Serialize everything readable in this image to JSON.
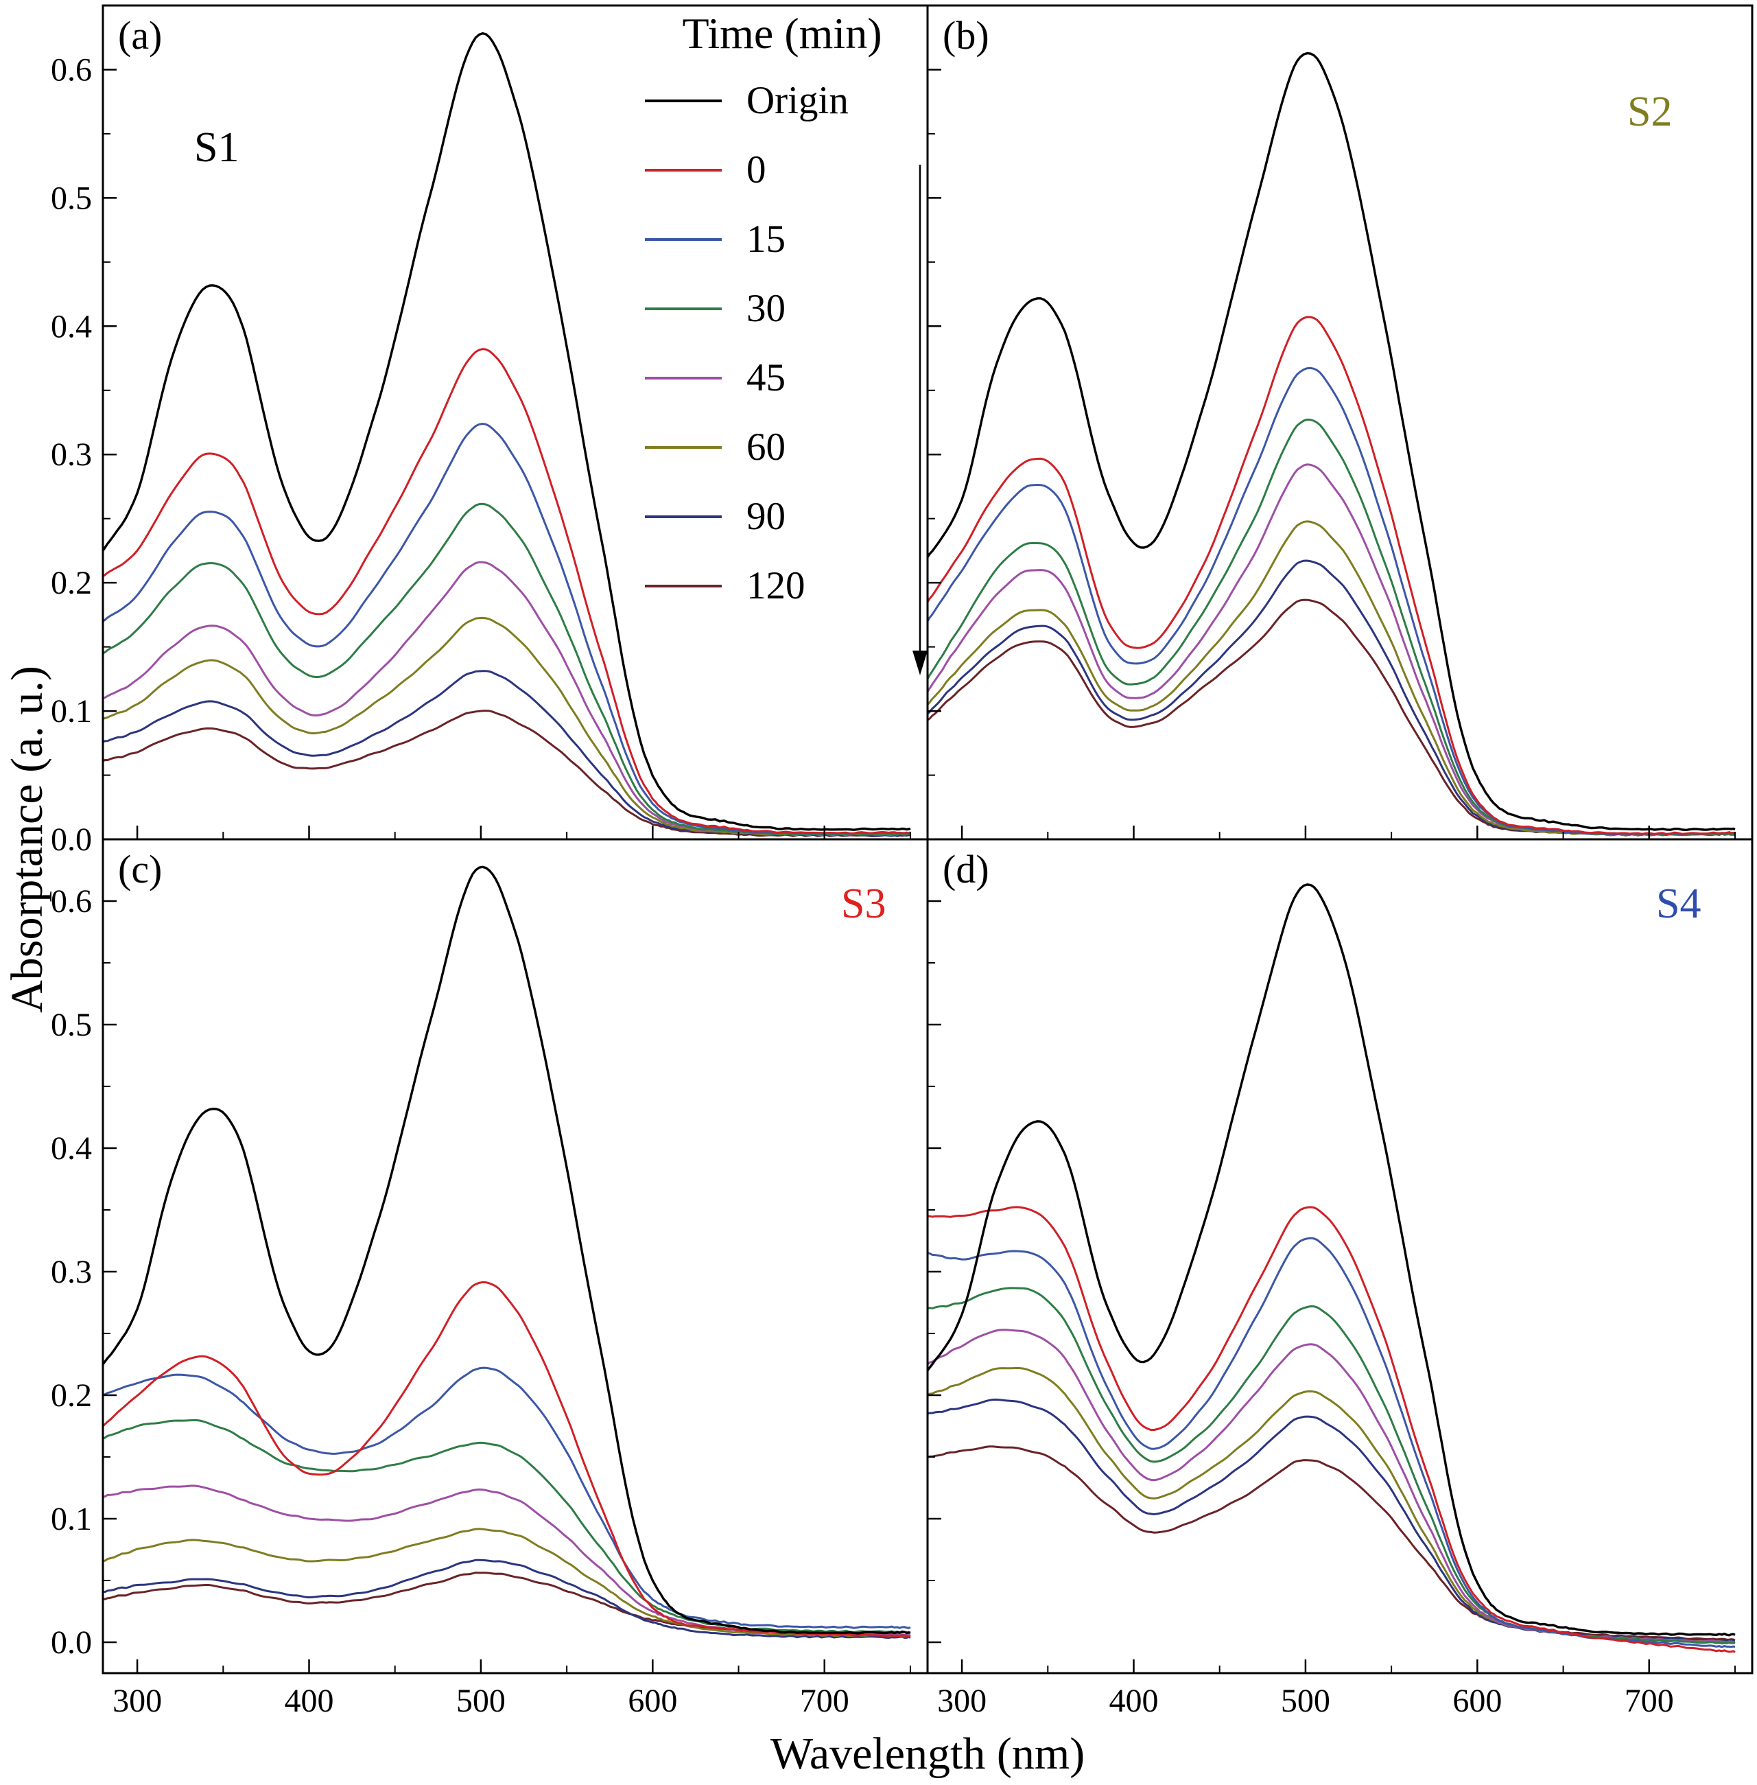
{
  "chart_data": {
    "type": "line",
    "legend_title": "Time (min)",
    "series_labels": [
      "Origin",
      "0",
      "15",
      "30",
      "45",
      "60",
      "90",
      "120"
    ],
    "series_colors": [
      "#000000",
      "#d02027",
      "#3c57a7",
      "#2e7d46",
      "#9e4fa5",
      "#7f7d20",
      "#2b3580",
      "#6a2328"
    ],
    "x_axis": {
      "label": "Wavelength (nm)",
      "range": [
        280,
        760
      ],
      "ticks": [
        300,
        400,
        500,
        600,
        700
      ],
      "minor_ticks": [
        350,
        450,
        550,
        650,
        750
      ]
    },
    "y_axis": {
      "label": "Absorptance (a. u.)",
      "range_top": [
        0,
        0.65
      ],
      "range_bottom": [
        -0.025,
        0.65
      ],
      "ticks": [
        "0.0",
        "0.1",
        "0.2",
        "0.3",
        "0.4",
        "0.5",
        "0.6"
      ],
      "minor_ticks": [
        0.05,
        0.15,
        0.25,
        0.35,
        0.45,
        0.55
      ]
    },
    "x": [
      280,
      300,
      320,
      340,
      360,
      385,
      410,
      440,
      470,
      497,
      520,
      545,
      570,
      600,
      650,
      750
    ],
    "panels": [
      {
        "tag": "(a)",
        "sample": "S1",
        "sample_color": "#000000",
        "series": [
          {
            "label": "Origin",
            "y": [
              0.225,
              0.27,
              0.375,
              0.43,
              0.405,
              0.275,
              0.235,
              0.34,
              0.5,
              0.625,
              0.575,
              0.42,
              0.235,
              0.05,
              0.012,
              0.008
            ]
          },
          {
            "label": "0",
            "y": [
              0.205,
              0.225,
              0.27,
              0.3,
              0.283,
              0.2,
              0.177,
              0.235,
              0.31,
              0.38,
              0.352,
              0.26,
              0.145,
              0.032,
              0.008,
              0.005
            ]
          },
          {
            "label": "15",
            "y": [
              0.17,
              0.19,
              0.23,
              0.255,
              0.24,
              0.17,
              0.152,
              0.2,
              0.262,
              0.322,
              0.297,
              0.22,
              0.122,
              0.028,
              0.007,
              0.005
            ]
          },
          {
            "label": "30",
            "y": [
              0.145,
              0.163,
              0.195,
              0.215,
              0.202,
              0.143,
              0.128,
              0.166,
              0.213,
              0.26,
              0.24,
              0.178,
              0.1,
              0.023,
              0.006,
              0.004
            ]
          },
          {
            "label": "45",
            "y": [
              0.11,
              0.124,
              0.15,
              0.166,
              0.156,
              0.11,
              0.098,
              0.13,
              0.175,
              0.215,
              0.198,
              0.148,
              0.083,
              0.02,
              0.006,
              0.004
            ]
          },
          {
            "label": "60",
            "y": [
              0.094,
              0.105,
              0.126,
              0.139,
              0.13,
              0.092,
              0.084,
              0.108,
              0.14,
              0.172,
              0.158,
              0.118,
              0.066,
              0.017,
              0.005,
              0.004
            ]
          },
          {
            "label": "90",
            "y": [
              0.076,
              0.084,
              0.098,
              0.107,
              0.1,
              0.072,
              0.066,
              0.083,
              0.107,
              0.131,
              0.12,
              0.09,
              0.051,
              0.014,
              0.005,
              0.003
            ]
          },
          {
            "label": "120",
            "y": [
              0.061,
              0.068,
              0.08,
              0.086,
              0.081,
              0.059,
              0.056,
              0.068,
              0.084,
              0.1,
              0.092,
              0.07,
              0.04,
              0.012,
              0.004,
              0.003
            ]
          }
        ]
      },
      {
        "tag": "(b)",
        "sample": "S2",
        "sample_color": "#7f7d20",
        "series": [
          {
            "label": "Origin",
            "y": [
              0.22,
              0.265,
              0.37,
              0.42,
              0.395,
              0.27,
              0.23,
              0.335,
              0.49,
              0.61,
              0.565,
              0.41,
              0.23,
              0.048,
              0.012,
              0.008
            ]
          },
          {
            "label": "0",
            "y": [
              0.185,
              0.225,
              0.27,
              0.296,
              0.277,
              0.17,
              0.152,
              0.212,
              0.315,
              0.405,
              0.375,
              0.277,
              0.152,
              0.03,
              0.007,
              0.005
            ]
          },
          {
            "label": "15",
            "y": [
              0.17,
              0.21,
              0.25,
              0.276,
              0.257,
              0.155,
              0.14,
              0.196,
              0.287,
              0.365,
              0.34,
              0.25,
              0.137,
              0.028,
              0.006,
              0.005
            ]
          },
          {
            "label": "30",
            "y": [
              0.125,
              0.168,
              0.21,
              0.231,
              0.215,
              0.133,
              0.125,
              0.176,
              0.25,
              0.325,
              0.3,
              0.22,
              0.12,
              0.025,
              0.006,
              0.004
            ]
          },
          {
            "label": "45",
            "y": [
              0.115,
              0.155,
              0.19,
              0.21,
              0.196,
              0.122,
              0.113,
              0.157,
              0.222,
              0.29,
              0.268,
              0.198,
              0.108,
              0.023,
              0.006,
              0.004
            ]
          },
          {
            "label": "60",
            "y": [
              0.105,
              0.136,
              0.163,
              0.179,
              0.167,
              0.11,
              0.103,
              0.14,
              0.19,
              0.246,
              0.228,
              0.168,
              0.092,
              0.02,
              0.005,
              0.004
            ]
          },
          {
            "label": "90",
            "y": [
              0.098,
              0.126,
              0.15,
              0.166,
              0.156,
              0.102,
              0.096,
              0.128,
              0.17,
              0.216,
              0.2,
              0.148,
              0.081,
              0.018,
              0.005,
              0.004
            ]
          },
          {
            "label": "120",
            "y": [
              0.093,
              0.118,
              0.141,
              0.154,
              0.145,
              0.096,
              0.09,
              0.118,
              0.151,
              0.186,
              0.172,
              0.128,
              0.07,
              0.016,
              0.005,
              0.004
            ]
          }
        ]
      },
      {
        "tag": "(c)",
        "sample": "S3",
        "sample_color": "#e01f1f",
        "series": [
          {
            "label": "Origin",
            "y": [
              0.225,
              0.27,
              0.375,
              0.43,
              0.405,
              0.275,
              0.235,
              0.34,
              0.5,
              0.625,
              0.575,
              0.42,
              0.235,
              0.05,
              0.012,
              0.008
            ]
          },
          {
            "label": "0",
            "y": [
              0.175,
              0.2,
              0.222,
              0.231,
              0.21,
              0.152,
              0.136,
              0.172,
              0.235,
              0.29,
              0.27,
              0.2,
              0.11,
              0.028,
              0.01,
              0.005
            ]
          },
          {
            "label": "15",
            "y": [
              0.2,
              0.21,
              0.216,
              0.213,
              0.196,
              0.166,
              0.153,
              0.161,
              0.19,
              0.221,
              0.21,
              0.166,
              0.1,
              0.035,
              0.015,
              0.012
            ]
          },
          {
            "label": "30",
            "y": [
              0.165,
              0.175,
              0.179,
              0.178,
              0.166,
              0.146,
              0.139,
              0.141,
              0.151,
              0.161,
              0.153,
              0.121,
              0.076,
              0.03,
              0.012,
              0.008
            ]
          },
          {
            "label": "45",
            "y": [
              0.118,
              0.123,
              0.126,
              0.125,
              0.116,
              0.104,
              0.099,
              0.101,
              0.113,
              0.123,
              0.116,
              0.091,
              0.059,
              0.025,
              0.01,
              0.006
            ]
          },
          {
            "label": "60",
            "y": [
              0.066,
              0.075,
              0.081,
              0.082,
              0.077,
              0.068,
              0.066,
              0.071,
              0.082,
              0.091,
              0.087,
              0.069,
              0.046,
              0.021,
              0.008,
              0.005
            ]
          },
          {
            "label": "90",
            "y": [
              0.041,
              0.046,
              0.049,
              0.051,
              0.047,
              0.039,
              0.037,
              0.043,
              0.056,
              0.066,
              0.063,
              0.051,
              0.036,
              0.016,
              0.006,
              0.004
            ]
          },
          {
            "label": "120",
            "y": [
              0.035,
              0.04,
              0.044,
              0.046,
              0.042,
              0.034,
              0.032,
              0.037,
              0.047,
              0.056,
              0.053,
              0.044,
              0.032,
              0.018,
              0.01,
              0.005
            ]
          }
        ]
      },
      {
        "tag": "(d)",
        "sample": "S4",
        "sample_color": "#2f4dae",
        "series": [
          {
            "label": "Origin",
            "y": [
              0.22,
              0.265,
              0.37,
              0.42,
              0.395,
              0.27,
              0.23,
              0.335,
              0.49,
              0.61,
              0.565,
              0.41,
              0.23,
              0.048,
              0.012,
              0.006
            ]
          },
          {
            "label": "0",
            "y": [
              0.345,
              0.345,
              0.35,
              0.35,
              0.32,
              0.225,
              0.172,
              0.21,
              0.285,
              0.35,
              0.33,
              0.25,
              0.14,
              0.035,
              0.008,
              -0.008
            ]
          },
          {
            "label": "15",
            "y": [
              0.315,
              0.31,
              0.315,
              0.315,
              0.29,
              0.205,
              0.157,
              0.19,
              0.26,
              0.325,
              0.305,
              0.23,
              0.13,
              0.032,
              0.007,
              -0.004
            ]
          },
          {
            "label": "30",
            "y": [
              0.27,
              0.275,
              0.285,
              0.285,
              0.26,
              0.19,
              0.147,
              0.17,
              0.22,
              0.27,
              0.255,
              0.195,
              0.112,
              0.03,
              0.007,
              -0.001
            ]
          },
          {
            "label": "45",
            "y": [
              0.225,
              0.24,
              0.252,
              0.25,
              0.23,
              0.17,
              0.132,
              0.155,
              0.2,
              0.24,
              0.225,
              0.172,
              0.099,
              0.027,
              0.007,
              0.0
            ]
          },
          {
            "label": "60",
            "y": [
              0.2,
              0.21,
              0.221,
              0.22,
              0.201,
              0.151,
              0.117,
              0.136,
              0.168,
              0.202,
              0.19,
              0.148,
              0.086,
              0.025,
              0.007,
              0.0
            ]
          },
          {
            "label": "90",
            "y": [
              0.185,
              0.19,
              0.196,
              0.192,
              0.176,
              0.134,
              0.104,
              0.121,
              0.151,
              0.182,
              0.17,
              0.133,
              0.078,
              0.023,
              0.007,
              0.001
            ]
          },
          {
            "label": "120",
            "y": [
              0.15,
              0.155,
              0.158,
              0.155,
              0.142,
              0.111,
              0.089,
              0.101,
              0.123,
              0.147,
              0.138,
              0.108,
              0.066,
              0.022,
              0.008,
              0.002
            ]
          }
        ]
      }
    ]
  }
}
